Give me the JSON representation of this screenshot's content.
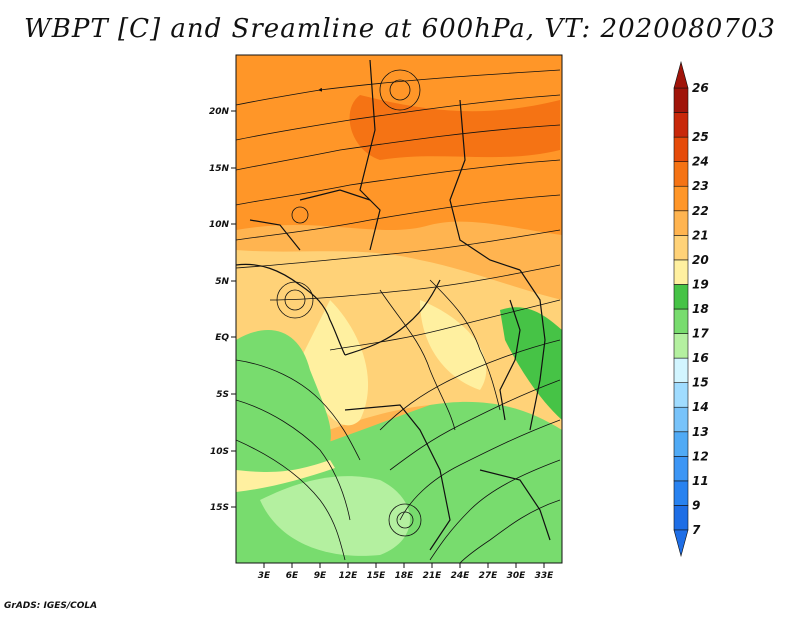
{
  "title": "WBPT [C] and Sreamline at 600hPa, VT: 2020080703",
  "footer": "GrADS: IGES/COLA",
  "map": {
    "lat_ticks": [
      "20N",
      "15N",
      "10N",
      "5N",
      "EQ",
      "5S",
      "10S",
      "15S"
    ],
    "lon_ticks": [
      "3E",
      "6E",
      "9E",
      "12E",
      "15E",
      "18E",
      "21E",
      "24E",
      "27E",
      "30E",
      "33E"
    ]
  },
  "colorbar": {
    "levels": [
      "7",
      "9",
      "11",
      "12",
      "13",
      "14",
      "15",
      "16",
      "17",
      "18",
      "19",
      "20",
      "21",
      "22",
      "23",
      "24",
      "25",
      "26"
    ],
    "colors": [
      "#1e6ee6",
      "#2882f0",
      "#3c96f5",
      "#50aaf5",
      "#78c3fa",
      "#a0dcff",
      "#d2f5ff",
      "#b4f0a0",
      "#78dc6e",
      "#46c346",
      "#fff0a0",
      "#ffd278",
      "#ffb450",
      "#ff9628",
      "#f57314",
      "#e64b0a",
      "#c8280a",
      "#a0140a"
    ]
  },
  "colors": {
    "land_low": "#78dc6e",
    "land_mid": "#ffd278",
    "land_high": "#ff9628"
  }
}
